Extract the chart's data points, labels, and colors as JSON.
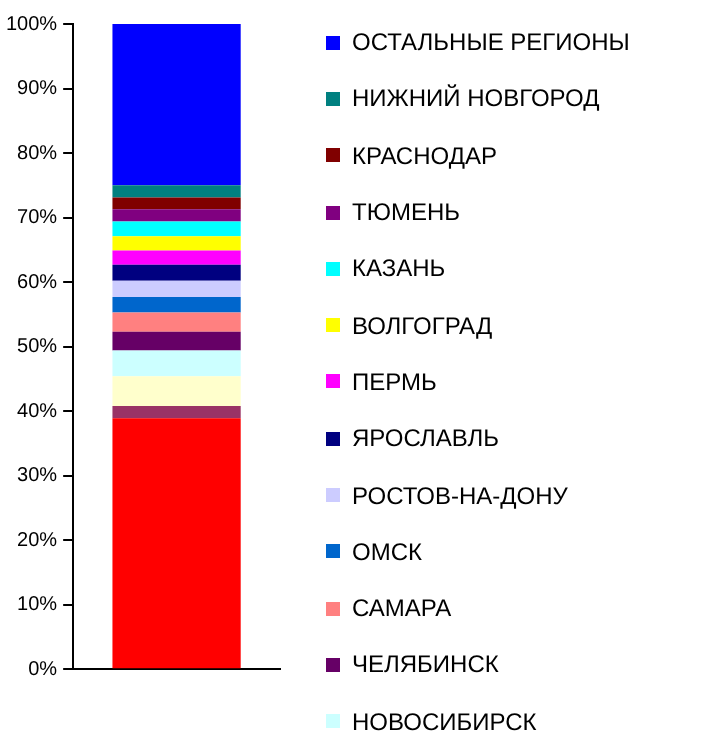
{
  "chart_data": {
    "type": "bar",
    "stacked": true,
    "categories": [
      null
    ],
    "legend": "right",
    "grid": false,
    "ylim": [
      0,
      100
    ],
    "yticks": [
      {
        "value": 0,
        "label": "0%"
      },
      {
        "value": 10,
        "label": "10%"
      },
      {
        "value": 20,
        "label": "20%"
      },
      {
        "value": 30,
        "label": "30%"
      },
      {
        "value": 40,
        "label": "40%"
      },
      {
        "value": 50,
        "label": "50%"
      },
      {
        "value": 60,
        "label": "60%"
      },
      {
        "value": 70,
        "label": "70%"
      },
      {
        "value": 80,
        "label": "80%"
      },
      {
        "value": 90,
        "label": "90%"
      },
      {
        "value": 100,
        "label": "100%"
      }
    ],
    "series": [
      {
        "color": "#ff0000",
        "values": [
          38.9
        ]
      },
      {
        "color": "#993366",
        "values": [
          1.9
        ]
      },
      {
        "color": "#ffffcc",
        "values": [
          4.6
        ]
      },
      {
        "name": "НОВОСИБИРСК",
        "color": "#ccffff",
        "values": [
          4.0
        ]
      },
      {
        "name": "ЧЕЛЯБИНСК",
        "color": "#660066",
        "values": [
          2.9
        ]
      },
      {
        "name": "САМАРА",
        "color": "#ff8080",
        "values": [
          3.0
        ]
      },
      {
        "name": "ОМСК",
        "color": "#0066cc",
        "values": [
          2.4
        ]
      },
      {
        "name": "РОСТОВ-НА-ДОНУ",
        "color": "#ccccff",
        "values": [
          2.5
        ]
      },
      {
        "name": "ЯРОСЛАВЛЬ",
        "color": "#000080",
        "values": [
          2.5
        ]
      },
      {
        "name": "ПЕРМЬ",
        "color": "#ff00ff",
        "values": [
          2.2
        ]
      },
      {
        "name": "ВОЛГОГРАД",
        "color": "#ffff00",
        "values": [
          2.2
        ]
      },
      {
        "name": "КАЗАНЬ",
        "color": "#00ffff",
        "values": [
          2.3
        ]
      },
      {
        "name": "ТЮМЕНЬ",
        "color": "#800080",
        "values": [
          1.9
        ]
      },
      {
        "name": "КРАСНОДАР",
        "color": "#800000",
        "values": [
          1.8
        ]
      },
      {
        "name": "НИЖНИЙ НОВГОРОД",
        "color": "#008080",
        "values": [
          1.9
        ]
      },
      {
        "name": "ОСТАЛЬНЫЕ РЕГИОНЫ",
        "color": "#0000ff",
        "values": [
          25.0
        ]
      }
    ]
  }
}
